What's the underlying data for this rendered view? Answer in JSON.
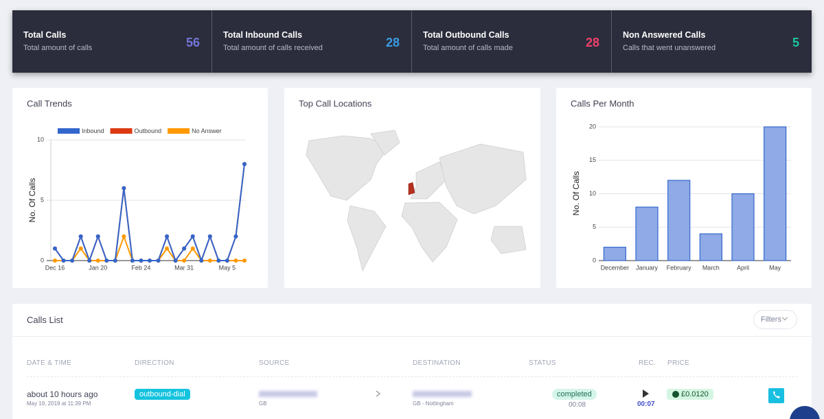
{
  "stats": [
    {
      "title": "Total Calls",
      "subtitle": "Total amount of calls",
      "value": 56,
      "color": "#7376d6"
    },
    {
      "title": "Total Inbound Calls",
      "subtitle": "Total amount of calls received",
      "value": 28,
      "color": "#3b9be3"
    },
    {
      "title": "Total Outbound Calls",
      "subtitle": "Total amount of calls made",
      "value": 28,
      "color": "#f1416c"
    },
    {
      "title": "Non Answered Calls",
      "subtitle": "Calls that went unanswered",
      "value": 5,
      "color": "#1bc5a0"
    }
  ],
  "chart_data": [
    {
      "type": "line",
      "title": "Call Trends",
      "y_label": "No. Of Calls",
      "categories": [
        "Dec 16",
        null,
        null,
        null,
        null,
        "Jan 20",
        null,
        null,
        null,
        null,
        "Feb 24",
        null,
        null,
        null,
        null,
        "Mar 31",
        null,
        null,
        null,
        null,
        "May 5",
        null,
        null
      ],
      "series": [
        {
          "name": "Inbound",
          "color": "#3366cc",
          "values": [
            1,
            0,
            0,
            2,
            0,
            2,
            0,
            0,
            6,
            0,
            0,
            0,
            0,
            2,
            0,
            1,
            2,
            0,
            2,
            0,
            0,
            2,
            8
          ]
        },
        {
          "name": "Outbound",
          "color": "#dc3912",
          "values": [
            1,
            0,
            0,
            2,
            0,
            2,
            0,
            0,
            6,
            0,
            0,
            0,
            0,
            2,
            0,
            1,
            2,
            0,
            2,
            0,
            0,
            2,
            8
          ]
        },
        {
          "name": "No Answer",
          "color": "#ff9900",
          "values": [
            0,
            0,
            0,
            1,
            0,
            0,
            0,
            0,
            2,
            0,
            0,
            0,
            0,
            1,
            0,
            0,
            1,
            0,
            0,
            0,
            0,
            0,
            0
          ]
        }
      ],
      "ylim": [
        0,
        10
      ],
      "yticks": [
        0,
        5,
        10
      ],
      "grid": true,
      "legend": "top"
    },
    {
      "type": "bar",
      "title": "Calls Per Month",
      "y_label": "No. Of Calls",
      "categories": [
        "December",
        "January",
        "February",
        "March",
        "April",
        "May"
      ],
      "values": [
        2,
        8,
        12,
        4,
        10,
        20
      ],
      "color": "#8faae6",
      "edge_color": "#3366cc",
      "ylim": [
        0,
        20
      ],
      "yticks": [
        0,
        5,
        10,
        15,
        20
      ],
      "grid": true
    }
  ],
  "map": {
    "title": "Top Call Locations"
  },
  "calls_list": {
    "title": "Calls List",
    "filter": "Filters",
    "headers": [
      "DATE & TIME",
      "DIRECTION",
      "SOURCE",
      "DESTINATION",
      "STATUS",
      "REC.",
      "PRICE"
    ],
    "rows": [
      {
        "time": "about 10 hours ago",
        "date": "May 19, 2019 at 11:39 PM",
        "direction": "outbound-dial",
        "source_country": "GB",
        "destination_location": "GB - Nottingham",
        "status": "completed",
        "duration": "00:08",
        "recording": "00:07",
        "price": "£0.0120"
      }
    ]
  }
}
